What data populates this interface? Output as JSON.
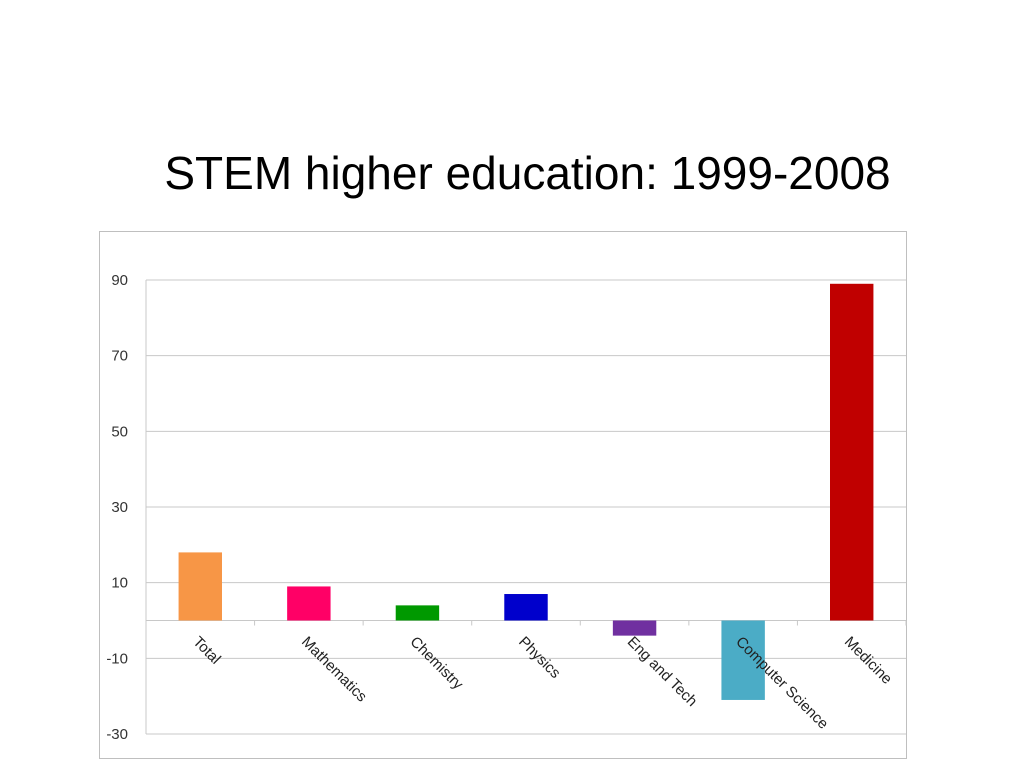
{
  "slide": {
    "title": "STEM higher education: 1999-2008"
  },
  "chart_data": {
    "type": "bar",
    "title": "",
    "xlabel": "",
    "ylabel": "",
    "ylim": [
      -30,
      90
    ],
    "yticks": [
      90,
      70,
      50,
      30,
      10,
      -10,
      -30
    ],
    "grid": true,
    "legend": "none",
    "categories": [
      "Total",
      "Mathematics",
      "Chemistry",
      "Physics",
      "Eng and Tech",
      "Computer Science",
      "Medicine"
    ],
    "values": [
      18,
      9,
      4,
      7,
      -4,
      -21,
      89
    ],
    "colors": [
      "#f79646",
      "#ff0066",
      "#009900",
      "#0000cc",
      "#7030a0",
      "#4bacc6",
      "#c00000"
    ]
  }
}
